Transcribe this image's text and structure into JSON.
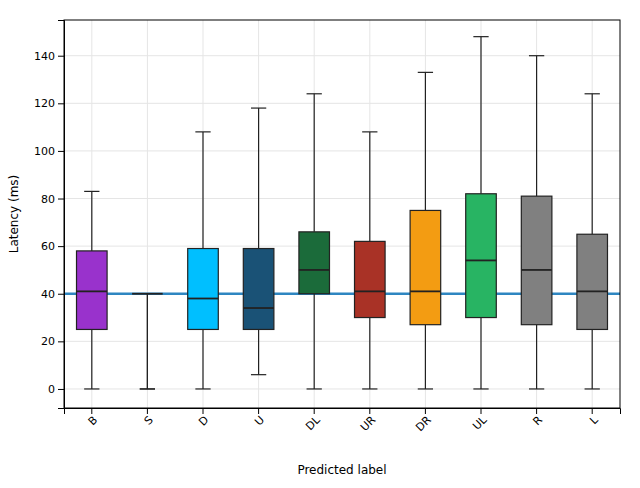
{
  "chart_data": {
    "type": "box",
    "xlabel": "Predicted label",
    "ylabel": "Latency (ms)",
    "categories": [
      "B",
      "S",
      "D",
      "U",
      "DL",
      "UR",
      "DR",
      "UL",
      "R",
      "L"
    ],
    "colors": [
      "#9932CC",
      "#FFD700",
      "#00BFFF",
      "#1A5276",
      "#1B6B3A",
      "#A93226",
      "#F39C12",
      "#28B463",
      "#808080",
      "#808080"
    ],
    "boxes": [
      {
        "whislo": 0,
        "q1": 25,
        "med": 41,
        "q3": 58,
        "whishi": 83
      },
      {
        "whislo": 0,
        "q1": 40,
        "med": 40,
        "q3": 40,
        "whishi": 0
      },
      {
        "whislo": 0,
        "q1": 25,
        "med": 38,
        "q3": 59,
        "whishi": 108
      },
      {
        "whislo": 6,
        "q1": 25,
        "med": 34,
        "q3": 59,
        "whishi": 118
      },
      {
        "whislo": 0,
        "q1": 40,
        "med": 50,
        "q3": 66,
        "whishi": 124
      },
      {
        "whislo": 0,
        "q1": 30,
        "med": 41,
        "q3": 62,
        "whishi": 108
      },
      {
        "whislo": 0,
        "q1": 27,
        "med": 41,
        "q3": 75,
        "whishi": 133
      },
      {
        "whislo": 0,
        "q1": 30,
        "med": 54,
        "q3": 82,
        "whishi": 148
      },
      {
        "whislo": 0,
        "q1": 27,
        "med": 50,
        "q3": 81,
        "whishi": 140
      },
      {
        "whislo": 0,
        "q1": 25,
        "med": 41,
        "q3": 65,
        "whishi": 124
      }
    ],
    "reference_line": {
      "value": 40,
      "color": "#2E86C1"
    },
    "ylim": [
      -8,
      155
    ],
    "yticks": [
      0,
      20,
      40,
      60,
      80,
      100,
      120,
      140
    ],
    "grid": true
  }
}
